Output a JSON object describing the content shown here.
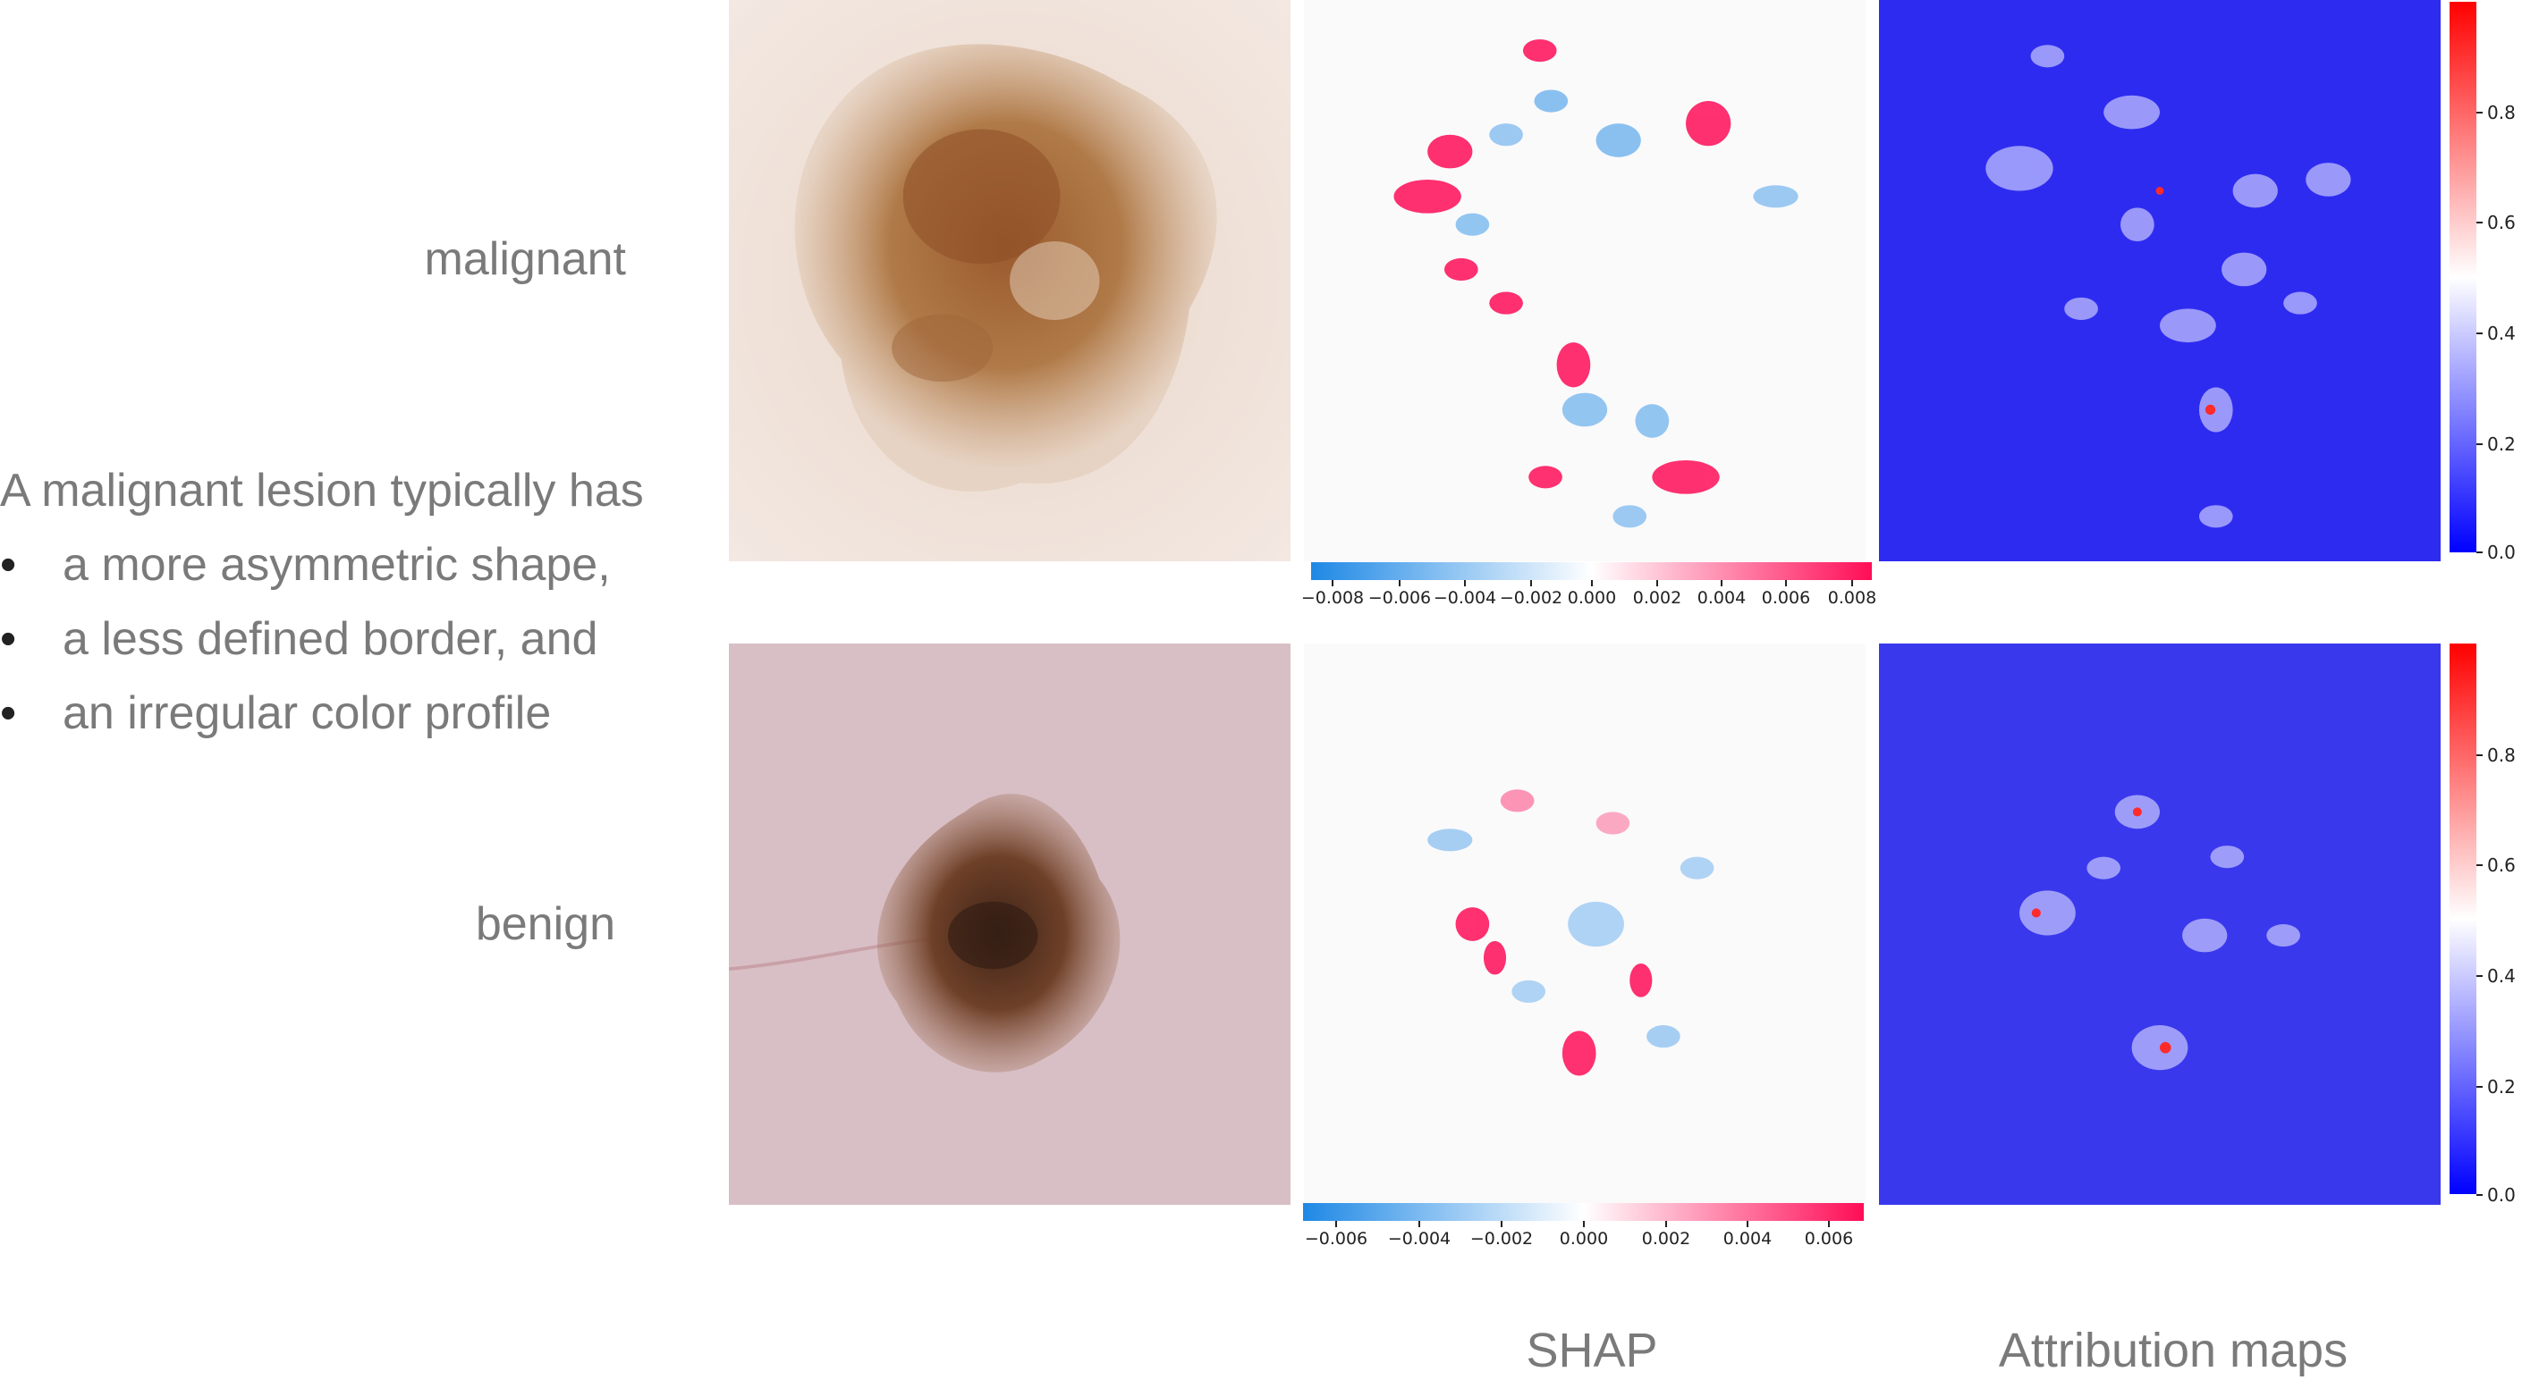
{
  "rows": [
    {
      "label": "malignant",
      "shap_ticks": [
        "−0.008",
        "−0.006",
        "−0.004",
        "−0.002",
        "0.000",
        "0.002",
        "0.004",
        "0.006",
        "0.008"
      ],
      "attr_ticks": [
        "0.8",
        "0.6",
        "0.4",
        "0.2",
        "0.0"
      ]
    },
    {
      "label": "benign",
      "shap_ticks": [
        "−0.006",
        "−0.004",
        "−0.002",
        "0.000",
        "0.002",
        "0.004",
        "0.006"
      ],
      "attr_ticks": [
        "0.8",
        "0.6",
        "0.4",
        "0.2",
        "0.0"
      ]
    }
  ],
  "description": {
    "lead": "A malignant lesion typically has",
    "bullets": [
      "a more asymmetric shape,",
      "a less defined border, and",
      "an irregular color profile"
    ]
  },
  "columns": {
    "shap": "SHAP",
    "attribution": "Attribution maps"
  },
  "colors": {
    "shap_negative": "#1e88e5",
    "shap_positive": "#ff0d57",
    "attr_low": "#0000ff",
    "attr_mid": "#ffffff",
    "attr_high": "#ff0000"
  }
}
